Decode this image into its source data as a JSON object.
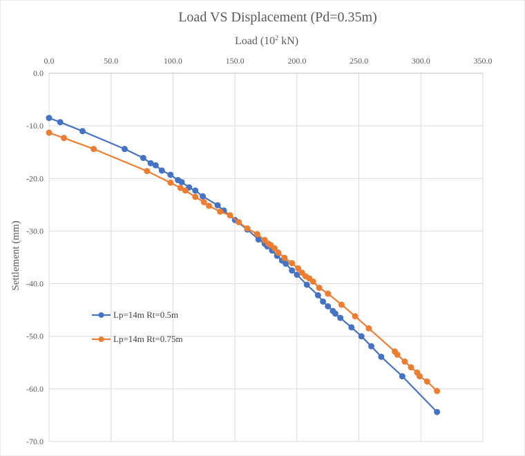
{
  "chart_data": {
    "type": "line",
    "title": "Load VS Displacement  (Pd=0.35m)",
    "xlabel_prefix": "Load (10",
    "xlabel_sup": "2",
    "xlabel_suffix": " kN)",
    "ylabel": "Settlement (mm)",
    "xlim": [
      0,
      350
    ],
    "ylim": [
      -70,
      0
    ],
    "x_ticks": [
      0,
      50,
      100,
      150,
      200,
      250,
      300,
      350
    ],
    "x_tick_labels": [
      "0.0",
      "50.0",
      "100.0",
      "150.0",
      "200.0",
      "250.0",
      "300.0",
      "350.0"
    ],
    "y_ticks": [
      0,
      -10,
      -20,
      -30,
      -40,
      -50,
      -60,
      -70
    ],
    "y_tick_labels": [
      "0.0",
      "-10.0",
      "-20.0",
      "-30.0",
      "-40.0",
      "-50.0",
      "-60.0",
      "-70.0"
    ],
    "grid": true,
    "x_axis_position": "top",
    "legend_position": "left-lower",
    "series": [
      {
        "name": "Lp=14m Rt=0.5m",
        "color": "#4472C4",
        "points": [
          [
            0,
            -8.5
          ],
          [
            9,
            -9.3
          ],
          [
            27,
            -11.0
          ],
          [
            61,
            -14.4
          ],
          [
            76,
            -16.1
          ],
          [
            82,
            -17.1
          ],
          [
            86,
            -17.5
          ],
          [
            91,
            -18.5
          ],
          [
            98,
            -19.3
          ],
          [
            104,
            -20.3
          ],
          [
            107,
            -20.7
          ],
          [
            113,
            -21.7
          ],
          [
            118,
            -22.3
          ],
          [
            124,
            -23.4
          ],
          [
            136,
            -25.1
          ],
          [
            141,
            -26.1
          ],
          [
            150,
            -27.9
          ],
          [
            160,
            -29.7
          ],
          [
            169,
            -31.6
          ],
          [
            174,
            -32.4
          ],
          [
            176,
            -32.9
          ],
          [
            180,
            -33.7
          ],
          [
            184,
            -34.7
          ],
          [
            188,
            -35.6
          ],
          [
            191,
            -36.2
          ],
          [
            196,
            -37.5
          ],
          [
            200,
            -38.3
          ],
          [
            208,
            -40.2
          ],
          [
            217,
            -42.2
          ],
          [
            221,
            -43.4
          ],
          [
            225,
            -44.3
          ],
          [
            229,
            -45.2
          ],
          [
            231,
            -45.7
          ],
          [
            235,
            -46.5
          ],
          [
            244,
            -48.3
          ],
          [
            252,
            -50.0
          ],
          [
            260,
            -51.9
          ],
          [
            268,
            -53.9
          ],
          [
            285,
            -57.6
          ],
          [
            313,
            -64.4
          ]
        ]
      },
      {
        "name": "Lp=14m Rt=0.75m",
        "color": "#ED7D31",
        "points": [
          [
            0,
            -11.3
          ],
          [
            12,
            -12.3
          ],
          [
            36,
            -14.4
          ],
          [
            79,
            -18.6
          ],
          [
            98,
            -20.8
          ],
          [
            106,
            -21.8
          ],
          [
            110,
            -22.3
          ],
          [
            118,
            -23.5
          ],
          [
            125,
            -24.5
          ],
          [
            129,
            -25.2
          ],
          [
            138,
            -26.3
          ],
          [
            146,
            -27.0
          ],
          [
            153,
            -28.3
          ],
          [
            160,
            -29.5
          ],
          [
            168,
            -30.6
          ],
          [
            174,
            -31.7
          ],
          [
            177,
            -32.4
          ],
          [
            179,
            -32.7
          ],
          [
            182,
            -33.3
          ],
          [
            185,
            -34.1
          ],
          [
            190,
            -35.1
          ],
          [
            196,
            -36.1
          ],
          [
            201,
            -37.1
          ],
          [
            204,
            -37.9
          ],
          [
            207,
            -38.6
          ],
          [
            210,
            -39.0
          ],
          [
            213,
            -39.6
          ],
          [
            218,
            -40.8
          ],
          [
            225,
            -41.9
          ],
          [
            236,
            -44.0
          ],
          [
            247,
            -46.2
          ],
          [
            258,
            -48.5
          ],
          [
            279,
            -52.9
          ],
          [
            281,
            -53.5
          ],
          [
            287,
            -54.8
          ],
          [
            292,
            -55.9
          ],
          [
            297,
            -56.9
          ],
          [
            299,
            -57.6
          ],
          [
            305,
            -58.6
          ],
          [
            313,
            -60.4
          ]
        ]
      }
    ]
  }
}
